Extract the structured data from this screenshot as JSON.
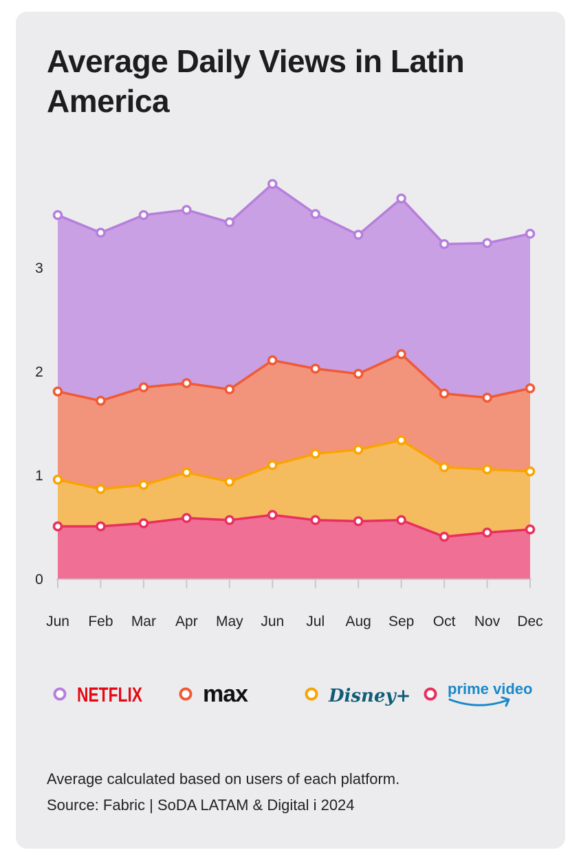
{
  "title": "Average Daily Views in Latin America",
  "chart_data": {
    "type": "area",
    "stacked": true,
    "categories": [
      "Jun",
      "Feb",
      "Mar",
      "Apr",
      "May",
      "Jun",
      "Jul",
      "Aug",
      "Sep",
      "Oct",
      "Nov",
      "Dec"
    ],
    "ylim": [
      0,
      3.6
    ],
    "yticks": [
      "0",
      "1",
      "2",
      "3"
    ],
    "grid": false,
    "legend_position": "bottom",
    "series": [
      {
        "name": "prime video",
        "color": "#e8305e",
        "fill": "#ef7094",
        "values": [
          0.51,
          0.51,
          0.54,
          0.59,
          0.57,
          0.62,
          0.57,
          0.56,
          0.57,
          0.41,
          0.45,
          0.48
        ]
      },
      {
        "name": "Disney+",
        "color": "#f9a400",
        "fill": "#f5bb5f",
        "values": [
          0.45,
          0.36,
          0.37,
          0.44,
          0.37,
          0.48,
          0.64,
          0.69,
          0.77,
          0.67,
          0.61,
          0.56
        ]
      },
      {
        "name": "max",
        "color": "#f05a35",
        "fill": "#f2937b",
        "values": [
          0.85,
          0.85,
          0.94,
          0.86,
          0.89,
          1.01,
          0.82,
          0.73,
          0.83,
          0.71,
          0.69,
          0.8
        ]
      },
      {
        "name": "NETFLIX",
        "color": "#b77fdc",
        "fill": "#c9a0e4",
        "values": [
          1.7,
          1.62,
          1.66,
          1.67,
          1.61,
          1.7,
          1.49,
          1.34,
          1.5,
          1.44,
          1.49,
          1.49
        ]
      }
    ]
  },
  "legend": [
    {
      "label": "NETFLIX",
      "color": "#b77fdc",
      "text_color": "#e50914"
    },
    {
      "label": "max",
      "color": "#f05a35",
      "text_color": "#111111"
    },
    {
      "label": "Disney+",
      "color": "#f9a400",
      "text_color": "#0f5d78"
    },
    {
      "label": "prime video",
      "color": "#e8305e",
      "text_color": "#1a88c9"
    }
  ],
  "footnote": "Average calculated based on users of each platform.",
  "source": "Source: Fabric | SoDA LATAM & Digital i 2024"
}
